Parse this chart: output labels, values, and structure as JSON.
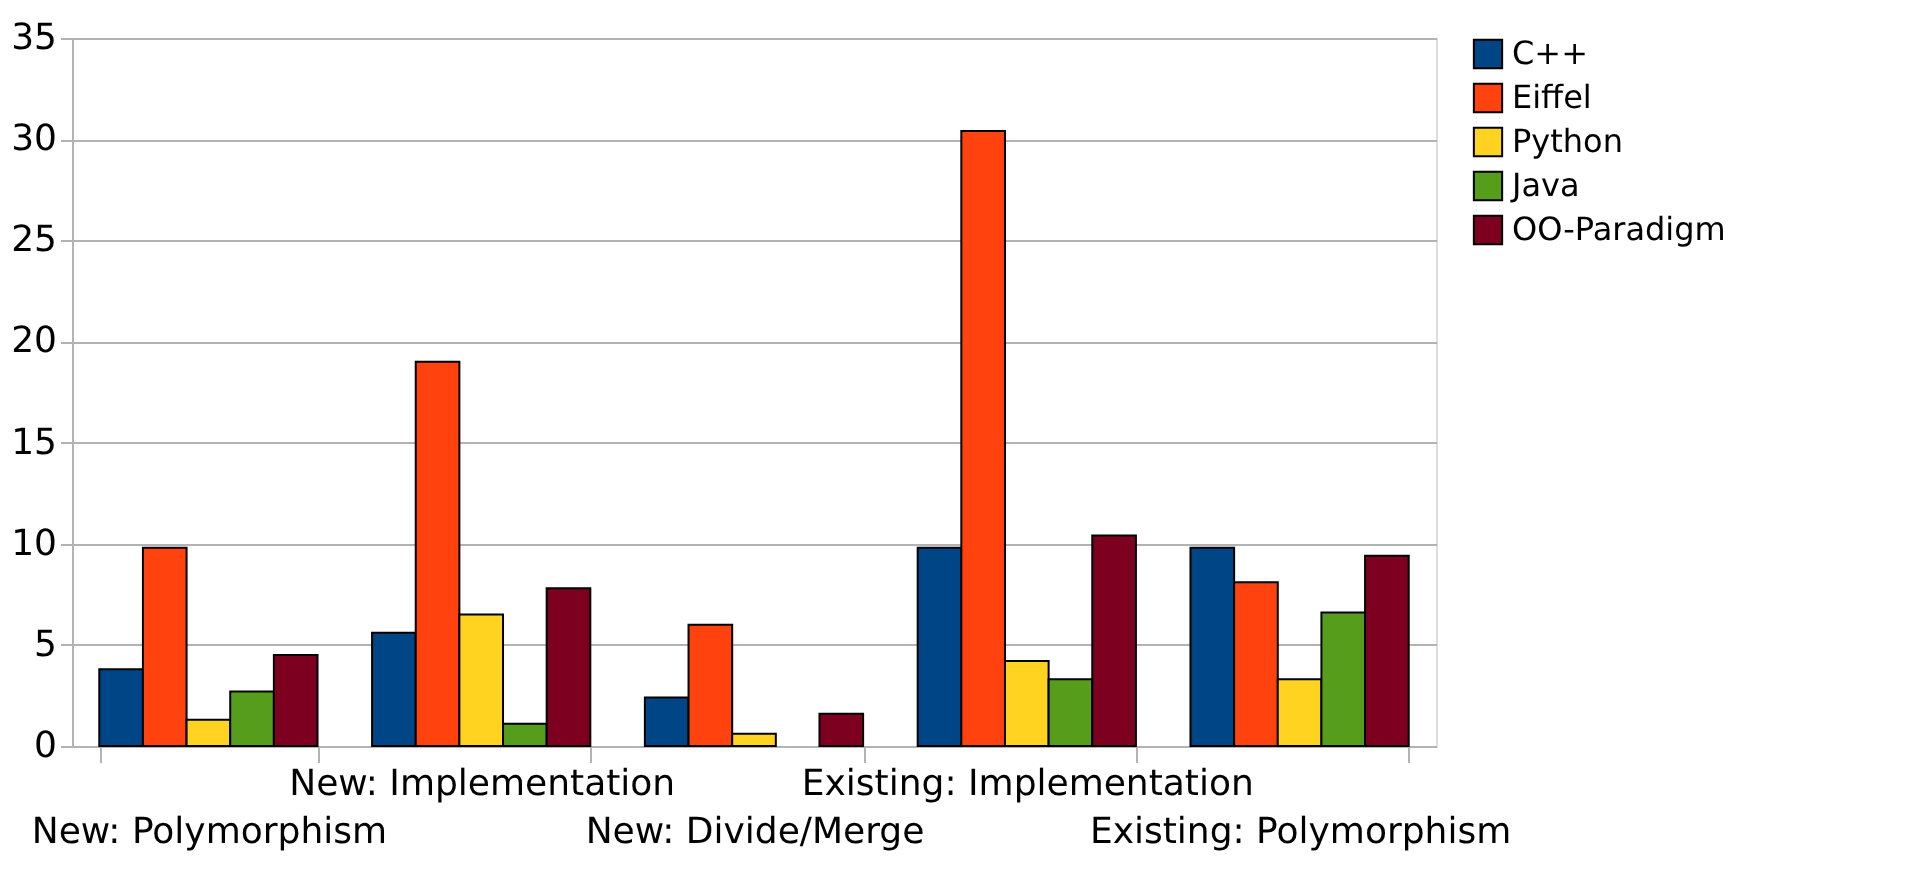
{
  "chart_data": {
    "type": "bar",
    "categories": [
      "New: Polymorphism",
      "New: Implementation",
      "New: Divide/Merge",
      "Existing: Implementation",
      "Existing: Polymorphism"
    ],
    "series": [
      {
        "name": "C++",
        "color": "#004586",
        "values": [
          3.8,
          5.6,
          2.4,
          9.8,
          9.8
        ]
      },
      {
        "name": "Eiffel",
        "color": "#ff420e",
        "values": [
          9.8,
          19.0,
          6.0,
          30.4,
          8.1
        ]
      },
      {
        "name": "Python",
        "color": "#ffd320",
        "values": [
          1.3,
          6.5,
          0.6,
          4.2,
          3.3
        ]
      },
      {
        "name": "Java",
        "color": "#579d1c",
        "values": [
          2.7,
          1.1,
          null,
          3.3,
          6.6
        ]
      },
      {
        "name": "OO-Paradigm",
        "color": "#7e0021",
        "values": [
          4.5,
          7.8,
          1.6,
          10.4,
          9.4
        ]
      }
    ],
    "ylim": [
      0,
      35
    ],
    "yticks": [
      0,
      5,
      10,
      15,
      20,
      25,
      30,
      35
    ],
    "grid": "y",
    "legend": "right"
  }
}
